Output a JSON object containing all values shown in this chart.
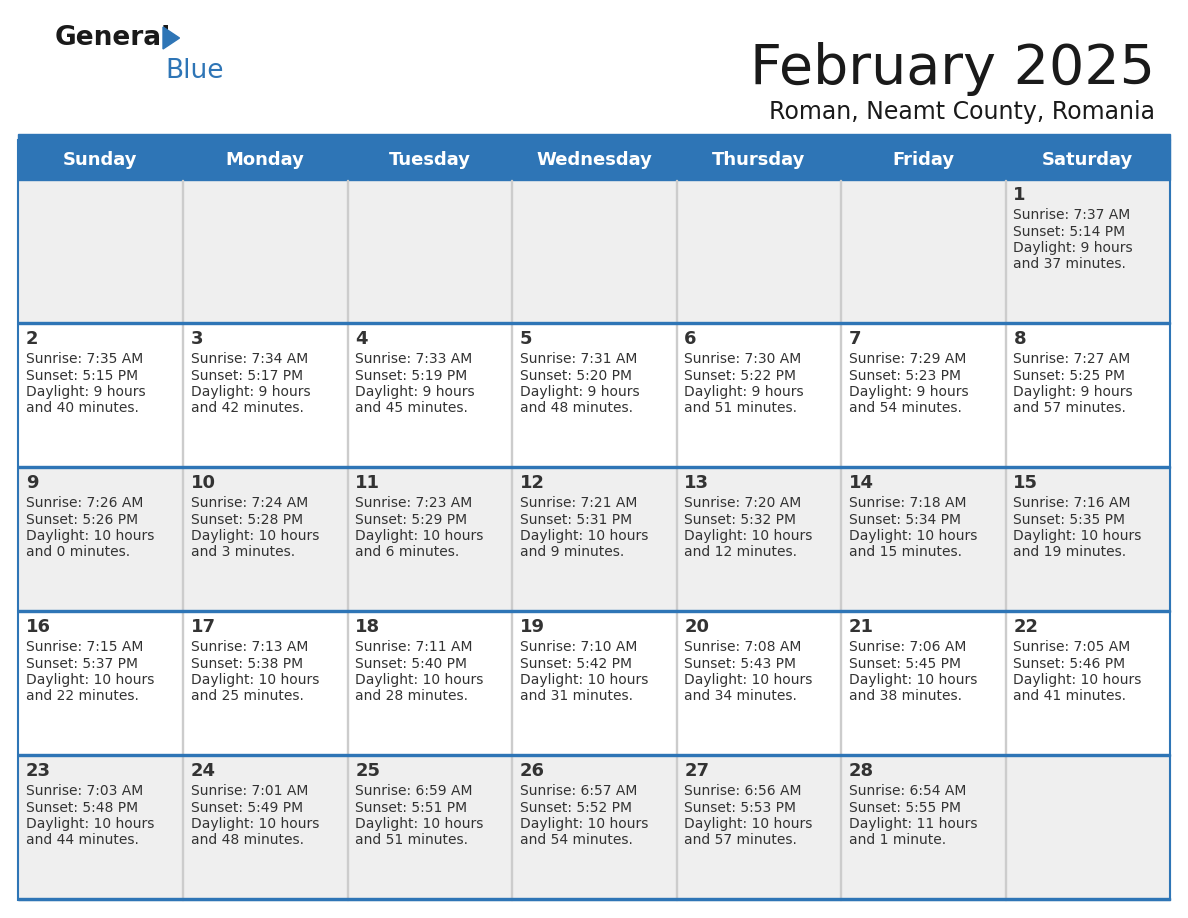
{
  "title": "February 2025",
  "subtitle": "Roman, Neamt County, Romania",
  "header_color": "#2E75B6",
  "header_text_color": "#FFFFFF",
  "day_names": [
    "Sunday",
    "Monday",
    "Tuesday",
    "Wednesday",
    "Thursday",
    "Friday",
    "Saturday"
  ],
  "background_color": "#FFFFFF",
  "alt_row_color": "#EFEFEF",
  "border_color": "#2E75B6",
  "title_color": "#1a1a1a",
  "subtitle_color": "#1a1a1a",
  "cell_text_color": "#333333",
  "logo_black": "#1a1a1a",
  "logo_blue": "#2E75B6",
  "weeks": [
    [
      {
        "day": null
      },
      {
        "day": null
      },
      {
        "day": null
      },
      {
        "day": null
      },
      {
        "day": null
      },
      {
        "day": null
      },
      {
        "day": 1,
        "sunrise": "7:37 AM",
        "sunset": "5:14 PM",
        "daylight": "9 hours",
        "daylight2": "and 37 minutes."
      }
    ],
    [
      {
        "day": 2,
        "sunrise": "7:35 AM",
        "sunset": "5:15 PM",
        "daylight": "9 hours",
        "daylight2": "and 40 minutes."
      },
      {
        "day": 3,
        "sunrise": "7:34 AM",
        "sunset": "5:17 PM",
        "daylight": "9 hours",
        "daylight2": "and 42 minutes."
      },
      {
        "day": 4,
        "sunrise": "7:33 AM",
        "sunset": "5:19 PM",
        "daylight": "9 hours",
        "daylight2": "and 45 minutes."
      },
      {
        "day": 5,
        "sunrise": "7:31 AM",
        "sunset": "5:20 PM",
        "daylight": "9 hours",
        "daylight2": "and 48 minutes."
      },
      {
        "day": 6,
        "sunrise": "7:30 AM",
        "sunset": "5:22 PM",
        "daylight": "9 hours",
        "daylight2": "and 51 minutes."
      },
      {
        "day": 7,
        "sunrise": "7:29 AM",
        "sunset": "5:23 PM",
        "daylight": "9 hours",
        "daylight2": "and 54 minutes."
      },
      {
        "day": 8,
        "sunrise": "7:27 AM",
        "sunset": "5:25 PM",
        "daylight": "9 hours",
        "daylight2": "and 57 minutes."
      }
    ],
    [
      {
        "day": 9,
        "sunrise": "7:26 AM",
        "sunset": "5:26 PM",
        "daylight": "10 hours",
        "daylight2": "and 0 minutes."
      },
      {
        "day": 10,
        "sunrise": "7:24 AM",
        "sunset": "5:28 PM",
        "daylight": "10 hours",
        "daylight2": "and 3 minutes."
      },
      {
        "day": 11,
        "sunrise": "7:23 AM",
        "sunset": "5:29 PM",
        "daylight": "10 hours",
        "daylight2": "and 6 minutes."
      },
      {
        "day": 12,
        "sunrise": "7:21 AM",
        "sunset": "5:31 PM",
        "daylight": "10 hours",
        "daylight2": "and 9 minutes."
      },
      {
        "day": 13,
        "sunrise": "7:20 AM",
        "sunset": "5:32 PM",
        "daylight": "10 hours",
        "daylight2": "and 12 minutes."
      },
      {
        "day": 14,
        "sunrise": "7:18 AM",
        "sunset": "5:34 PM",
        "daylight": "10 hours",
        "daylight2": "and 15 minutes."
      },
      {
        "day": 15,
        "sunrise": "7:16 AM",
        "sunset": "5:35 PM",
        "daylight": "10 hours",
        "daylight2": "and 19 minutes."
      }
    ],
    [
      {
        "day": 16,
        "sunrise": "7:15 AM",
        "sunset": "5:37 PM",
        "daylight": "10 hours",
        "daylight2": "and 22 minutes."
      },
      {
        "day": 17,
        "sunrise": "7:13 AM",
        "sunset": "5:38 PM",
        "daylight": "10 hours",
        "daylight2": "and 25 minutes."
      },
      {
        "day": 18,
        "sunrise": "7:11 AM",
        "sunset": "5:40 PM",
        "daylight": "10 hours",
        "daylight2": "and 28 minutes."
      },
      {
        "day": 19,
        "sunrise": "7:10 AM",
        "sunset": "5:42 PM",
        "daylight": "10 hours",
        "daylight2": "and 31 minutes."
      },
      {
        "day": 20,
        "sunrise": "7:08 AM",
        "sunset": "5:43 PM",
        "daylight": "10 hours",
        "daylight2": "and 34 minutes."
      },
      {
        "day": 21,
        "sunrise": "7:06 AM",
        "sunset": "5:45 PM",
        "daylight": "10 hours",
        "daylight2": "and 38 minutes."
      },
      {
        "day": 22,
        "sunrise": "7:05 AM",
        "sunset": "5:46 PM",
        "daylight": "10 hours",
        "daylight2": "and 41 minutes."
      }
    ],
    [
      {
        "day": 23,
        "sunrise": "7:03 AM",
        "sunset": "5:48 PM",
        "daylight": "10 hours",
        "daylight2": "and 44 minutes."
      },
      {
        "day": 24,
        "sunrise": "7:01 AM",
        "sunset": "5:49 PM",
        "daylight": "10 hours",
        "daylight2": "and 48 minutes."
      },
      {
        "day": 25,
        "sunrise": "6:59 AM",
        "sunset": "5:51 PM",
        "daylight": "10 hours",
        "daylight2": "and 51 minutes."
      },
      {
        "day": 26,
        "sunrise": "6:57 AM",
        "sunset": "5:52 PM",
        "daylight": "10 hours",
        "daylight2": "and 54 minutes."
      },
      {
        "day": 27,
        "sunrise": "6:56 AM",
        "sunset": "5:53 PM",
        "daylight": "10 hours",
        "daylight2": "and 57 minutes."
      },
      {
        "day": 28,
        "sunrise": "6:54 AM",
        "sunset": "5:55 PM",
        "daylight": "11 hours",
        "daylight2": "and 1 minute."
      },
      {
        "day": null
      }
    ]
  ]
}
